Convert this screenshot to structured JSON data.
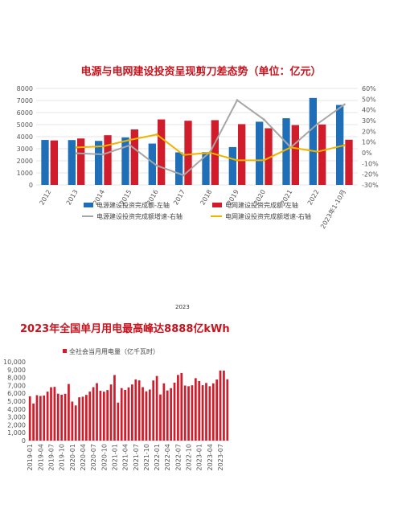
{
  "chart_data": [
    {
      "type": "bar",
      "title": "电源与电网建设投资呈现剪刀差态势（单位：亿元）",
      "categories": [
        "2012",
        "2013",
        "2014",
        "2015",
        "2016",
        "2017",
        "2018",
        "2019",
        "2020",
        "2021",
        "2022",
        "2023年1-10月"
      ],
      "left_axis": {
        "range": [
          0,
          8000
        ],
        "ticks": [
          "0",
          "1000",
          "2000",
          "3000",
          "4000",
          "5000",
          "6000",
          "7000",
          "8000"
        ]
      },
      "right_axis": {
        "range": [
          -30,
          60
        ],
        "ticks": [
          "-30%",
          "-20%",
          "-10%",
          "0%",
          "10%",
          "20%",
          "30%",
          "40%",
          "50%",
          "60%"
        ]
      },
      "series": [
        {
          "name": "电源建设投资完成额-左轴",
          "axis": "left",
          "kind": "bar",
          "color": "#1f6fb8",
          "values": [
            3730,
            3720,
            3650,
            3940,
            3430,
            2700,
            2720,
            3140,
            5240,
            5530,
            7210,
            6630
          ]
        },
        {
          "name": "电网建设投资完成额-左轴",
          "axis": "left",
          "kind": "bar",
          "color": "#d01c2b",
          "values": [
            3690,
            3850,
            4120,
            4600,
            5430,
            5320,
            5370,
            5040,
            4700,
            4960,
            5010,
            3750
          ]
        },
        {
          "name": "电源建设投资完成额增速-右轴",
          "axis": "right",
          "kind": "line",
          "color": "#a6a6a6",
          "values": [
            null,
            -0.5,
            -1.5,
            7,
            -12,
            -21,
            1,
            49,
            31,
            5,
            27,
            45
          ]
        },
        {
          "name": "电网建设投资完成额增速-右轴",
          "axis": "right",
          "kind": "line",
          "color": "#f0b400",
          "values": [
            null,
            5,
            6,
            12,
            17,
            -2,
            0,
            -7,
            -7,
            5,
            1,
            7
          ]
        }
      ],
      "grid": true,
      "legend_position": "bottom"
    },
    {
      "type": "bar",
      "title": "2023年全国单月用电最高峰达8888亿kWh",
      "legend": "全社会当月用电量（亿千瓦时）",
      "color": "#d01c2b",
      "y_axis": {
        "range": [
          0,
          10000
        ],
        "ticks": [
          "0",
          "1,000",
          "2,000",
          "3,000",
          "4,000",
          "5,000",
          "6,000",
          "7,000",
          "8,000",
          "9,000",
          "10,000"
        ]
      },
      "x_tick_labels": [
        "2019-01",
        "2019-04",
        "2019-07",
        "2019-10",
        "2020-01",
        "2020-04",
        "2020-07",
        "2020-10",
        "2021-01",
        "2021-04",
        "2021-07",
        "2021-10",
        "2022-01",
        "2022-04",
        "2022-07",
        "2022-10",
        "2023-01",
        "2023-04",
        "2023-07"
      ],
      "x_tick_every": 3,
      "values": [
        5620,
        4700,
        5760,
        5660,
        5720,
        6210,
        6770,
        6820,
        5950,
        5820,
        5940,
        7180,
        4950,
        4460,
        5490,
        5570,
        5800,
        6220,
        6780,
        7290,
        6320,
        6210,
        6410,
        7120,
        8320,
        4820,
        6660,
        6430,
        6750,
        7120,
        7760,
        7640,
        6780,
        6250,
        6480,
        7630,
        8200,
        5850,
        7260,
        6360,
        6650,
        7350,
        8330,
        8580,
        6990,
        6900,
        7020,
        7920,
        7560,
        7030,
        7310,
        6900,
        7260,
        7750,
        8888,
        8880,
        7780
      ]
    }
  ],
  "stray_text": "2023"
}
